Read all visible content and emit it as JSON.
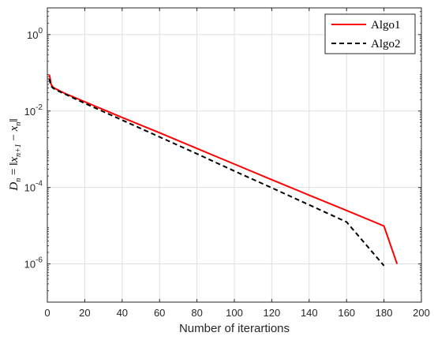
{
  "chart_data": {
    "type": "line",
    "title": "",
    "xlabel": "Number of iterartions",
    "ylabel": "D_n = ||x_{n+1} - x_n||",
    "yscale": "log",
    "xlim": [
      0,
      200
    ],
    "ylim": [
      1e-07,
      5
    ],
    "grid": true,
    "legend_position": "top-right",
    "x_ticks": [
      0,
      20,
      40,
      60,
      80,
      100,
      120,
      140,
      160,
      180,
      200
    ],
    "y_ticks": [
      {
        "value": 1e-06,
        "base": "10",
        "exp": "-6"
      },
      {
        "value": 0.0001,
        "base": "10",
        "exp": "-4"
      },
      {
        "value": 0.01,
        "base": "10",
        "exp": "-2"
      },
      {
        "value": 1,
        "base": "10",
        "exp": "0"
      }
    ],
    "series": [
      {
        "name": "Algo1",
        "color": "#ff0000",
        "style": "solid",
        "x": [
          1,
          1.5,
          2,
          3,
          5,
          10,
          20,
          40,
          60,
          80,
          100,
          120,
          140,
          160,
          180,
          187
        ],
        "y": [
          0.09,
          0.07,
          0.05,
          0.042,
          0.037,
          0.028,
          0.0175,
          0.0068,
          0.0027,
          0.00105,
          0.00041,
          0.00016,
          6.3e-05,
          2.5e-05,
          9.8e-06,
          1e-06
        ]
      },
      {
        "name": "Algo2",
        "color": "#000000",
        "style": "dashed",
        "x": [
          1,
          1.5,
          2,
          3,
          5,
          10,
          20,
          40,
          60,
          80,
          100,
          120,
          140,
          160,
          180
        ],
        "y": [
          0.07,
          0.055,
          0.045,
          0.04,
          0.035,
          0.027,
          0.016,
          0.0058,
          0.0021,
          0.00076,
          0.00027,
          9.8e-05,
          3.5e-05,
          1.25e-05,
          9e-07
        ]
      }
    ]
  }
}
